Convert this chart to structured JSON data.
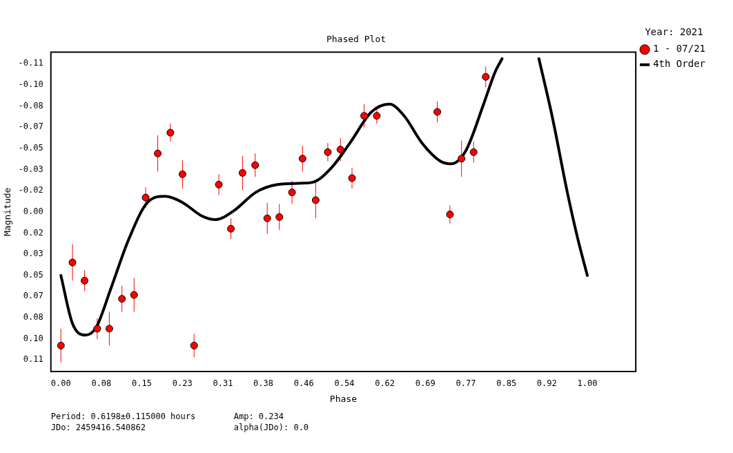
{
  "chart_data": {
    "type": "scatter",
    "title": "Phased Plot",
    "xlabel": "Phase",
    "ylabel": "Magnitude",
    "legend_title": "Year: 2021",
    "legend": "right",
    "grid": false,
    "marker": "circle",
    "xlim": [
      -0.019,
      1.092
    ],
    "xticks": [
      {
        "value": 0,
        "label": "0.00"
      },
      {
        "value": 0.0769,
        "label": "0.08"
      },
      {
        "value": 0.1538,
        "label": "0.15"
      },
      {
        "value": 0.2308,
        "label": "0.23"
      },
      {
        "value": 0.3077,
        "label": "0.31"
      },
      {
        "value": 0.3846,
        "label": "0.38"
      },
      {
        "value": 0.4615,
        "label": "0.46"
      },
      {
        "value": 0.5385,
        "label": "0.54"
      },
      {
        "value": 0.6154,
        "label": "0.62"
      },
      {
        "value": 0.6923,
        "label": "0.69"
      },
      {
        "value": 0.7692,
        "label": "0.77"
      },
      {
        "value": 0.8462,
        "label": "0.85"
      },
      {
        "value": 0.9231,
        "label": "0.92"
      },
      {
        "value": 1,
        "label": "1.00"
      }
    ],
    "ylim": [
      0.123,
      -0.123
    ],
    "yticks": [
      {
        "value": -0.1141,
        "label": "-0.11"
      },
      {
        "value": -0.0978,
        "label": "-0.10"
      },
      {
        "value": -0.0815,
        "label": "-0.08"
      },
      {
        "value": -0.0652,
        "label": "-0.07"
      },
      {
        "value": -0.0489,
        "label": "-0.05"
      },
      {
        "value": -0.0326,
        "label": "-0.03"
      },
      {
        "value": -0.0163,
        "label": "-0.02"
      },
      {
        "value": 0,
        "label": "0.00"
      },
      {
        "value": 0.0163,
        "label": "0.02"
      },
      {
        "value": 0.0326,
        "label": "0.03"
      },
      {
        "value": 0.0489,
        "label": "0.05"
      },
      {
        "value": 0.0652,
        "label": "0.07"
      },
      {
        "value": 0.0815,
        "label": "0.08"
      },
      {
        "value": 0.0978,
        "label": "0.10"
      },
      {
        "value": 0.1141,
        "label": "0.11"
      }
    ],
    "series": [
      {
        "name": "1 - 07/21",
        "color": "#ff0000",
        "x": [
          0,
          0.022,
          0.045,
          0.069,
          0.092,
          0.116,
          0.139,
          0.161,
          0.184,
          0.208,
          0.231,
          0.253,
          0.3,
          0.323,
          0.345,
          0.369,
          0.392,
          0.415,
          0.439,
          0.459,
          0.484,
          0.507,
          0.531,
          0.553,
          0.576,
          0.6,
          0.715,
          0.739,
          0.761,
          0.784,
          0.807
        ],
        "values": [
          0.103,
          0.039,
          0.053,
          0.09,
          0.09,
          0.067,
          0.064,
          -0.011,
          -0.045,
          -0.061,
          -0.029,
          0.103,
          -0.021,
          0.013,
          -0.03,
          -0.036,
          0.005,
          0.004,
          -0.015,
          -0.041,
          -0.009,
          -0.046,
          -0.048,
          -0.026,
          -0.074,
          -0.074,
          -0.077,
          0.002,
          -0.041,
          -0.046,
          -0.104
        ],
        "errors": [
          0.013,
          0.014,
          0.008,
          0.008,
          0.013,
          0.01,
          0.013,
          0.008,
          0.014,
          0.007,
          0.011,
          0.009,
          0.008,
          0.008,
          0.013,
          0.009,
          0.012,
          0.01,
          0.009,
          0.01,
          0.014,
          0.007,
          0.009,
          0.008,
          0.009,
          0.006,
          0.008,
          0.007,
          0.014,
          0.008,
          0.008
        ]
      },
      {
        "name": "4th Order",
        "type": "line",
        "color": "#000000",
        "marker": "none",
        "x": [
          0,
          0.022,
          0.047,
          0.067,
          0.095,
          0.129,
          0.164,
          0.198,
          0.232,
          0.267,
          0.294,
          0.329,
          0.37,
          0.411,
          0.452,
          0.48,
          0.514,
          0.549,
          0.59,
          0.624,
          0.652,
          0.686,
          0.721,
          0.741,
          0.769,
          0.803,
          0.824,
          0.838,
          0.87,
          0.908,
          0.934,
          0.962,
          0.982,
          1.0
        ],
        "values": [
          0.049,
          0.086,
          0.095,
          0.089,
          0.059,
          0.021,
          -0.007,
          -0.012,
          -0.007,
          0.003,
          0.006,
          -0.001,
          -0.015,
          -0.021,
          -0.022,
          -0.023,
          -0.034,
          -0.053,
          -0.077,
          -0.083,
          -0.074,
          -0.053,
          -0.039,
          -0.037,
          -0.047,
          -0.083,
          -0.107,
          -0.118,
          null,
          -0.118,
          -0.072,
          -0.015,
          0.021,
          0.049
        ]
      }
    ],
    "annotations": [
      "Period: 0.6198±0.115000 hours",
      "Amp: 0.234",
      "JDo: 2459416.540862",
      "alpha(JDo): 0.0"
    ]
  }
}
